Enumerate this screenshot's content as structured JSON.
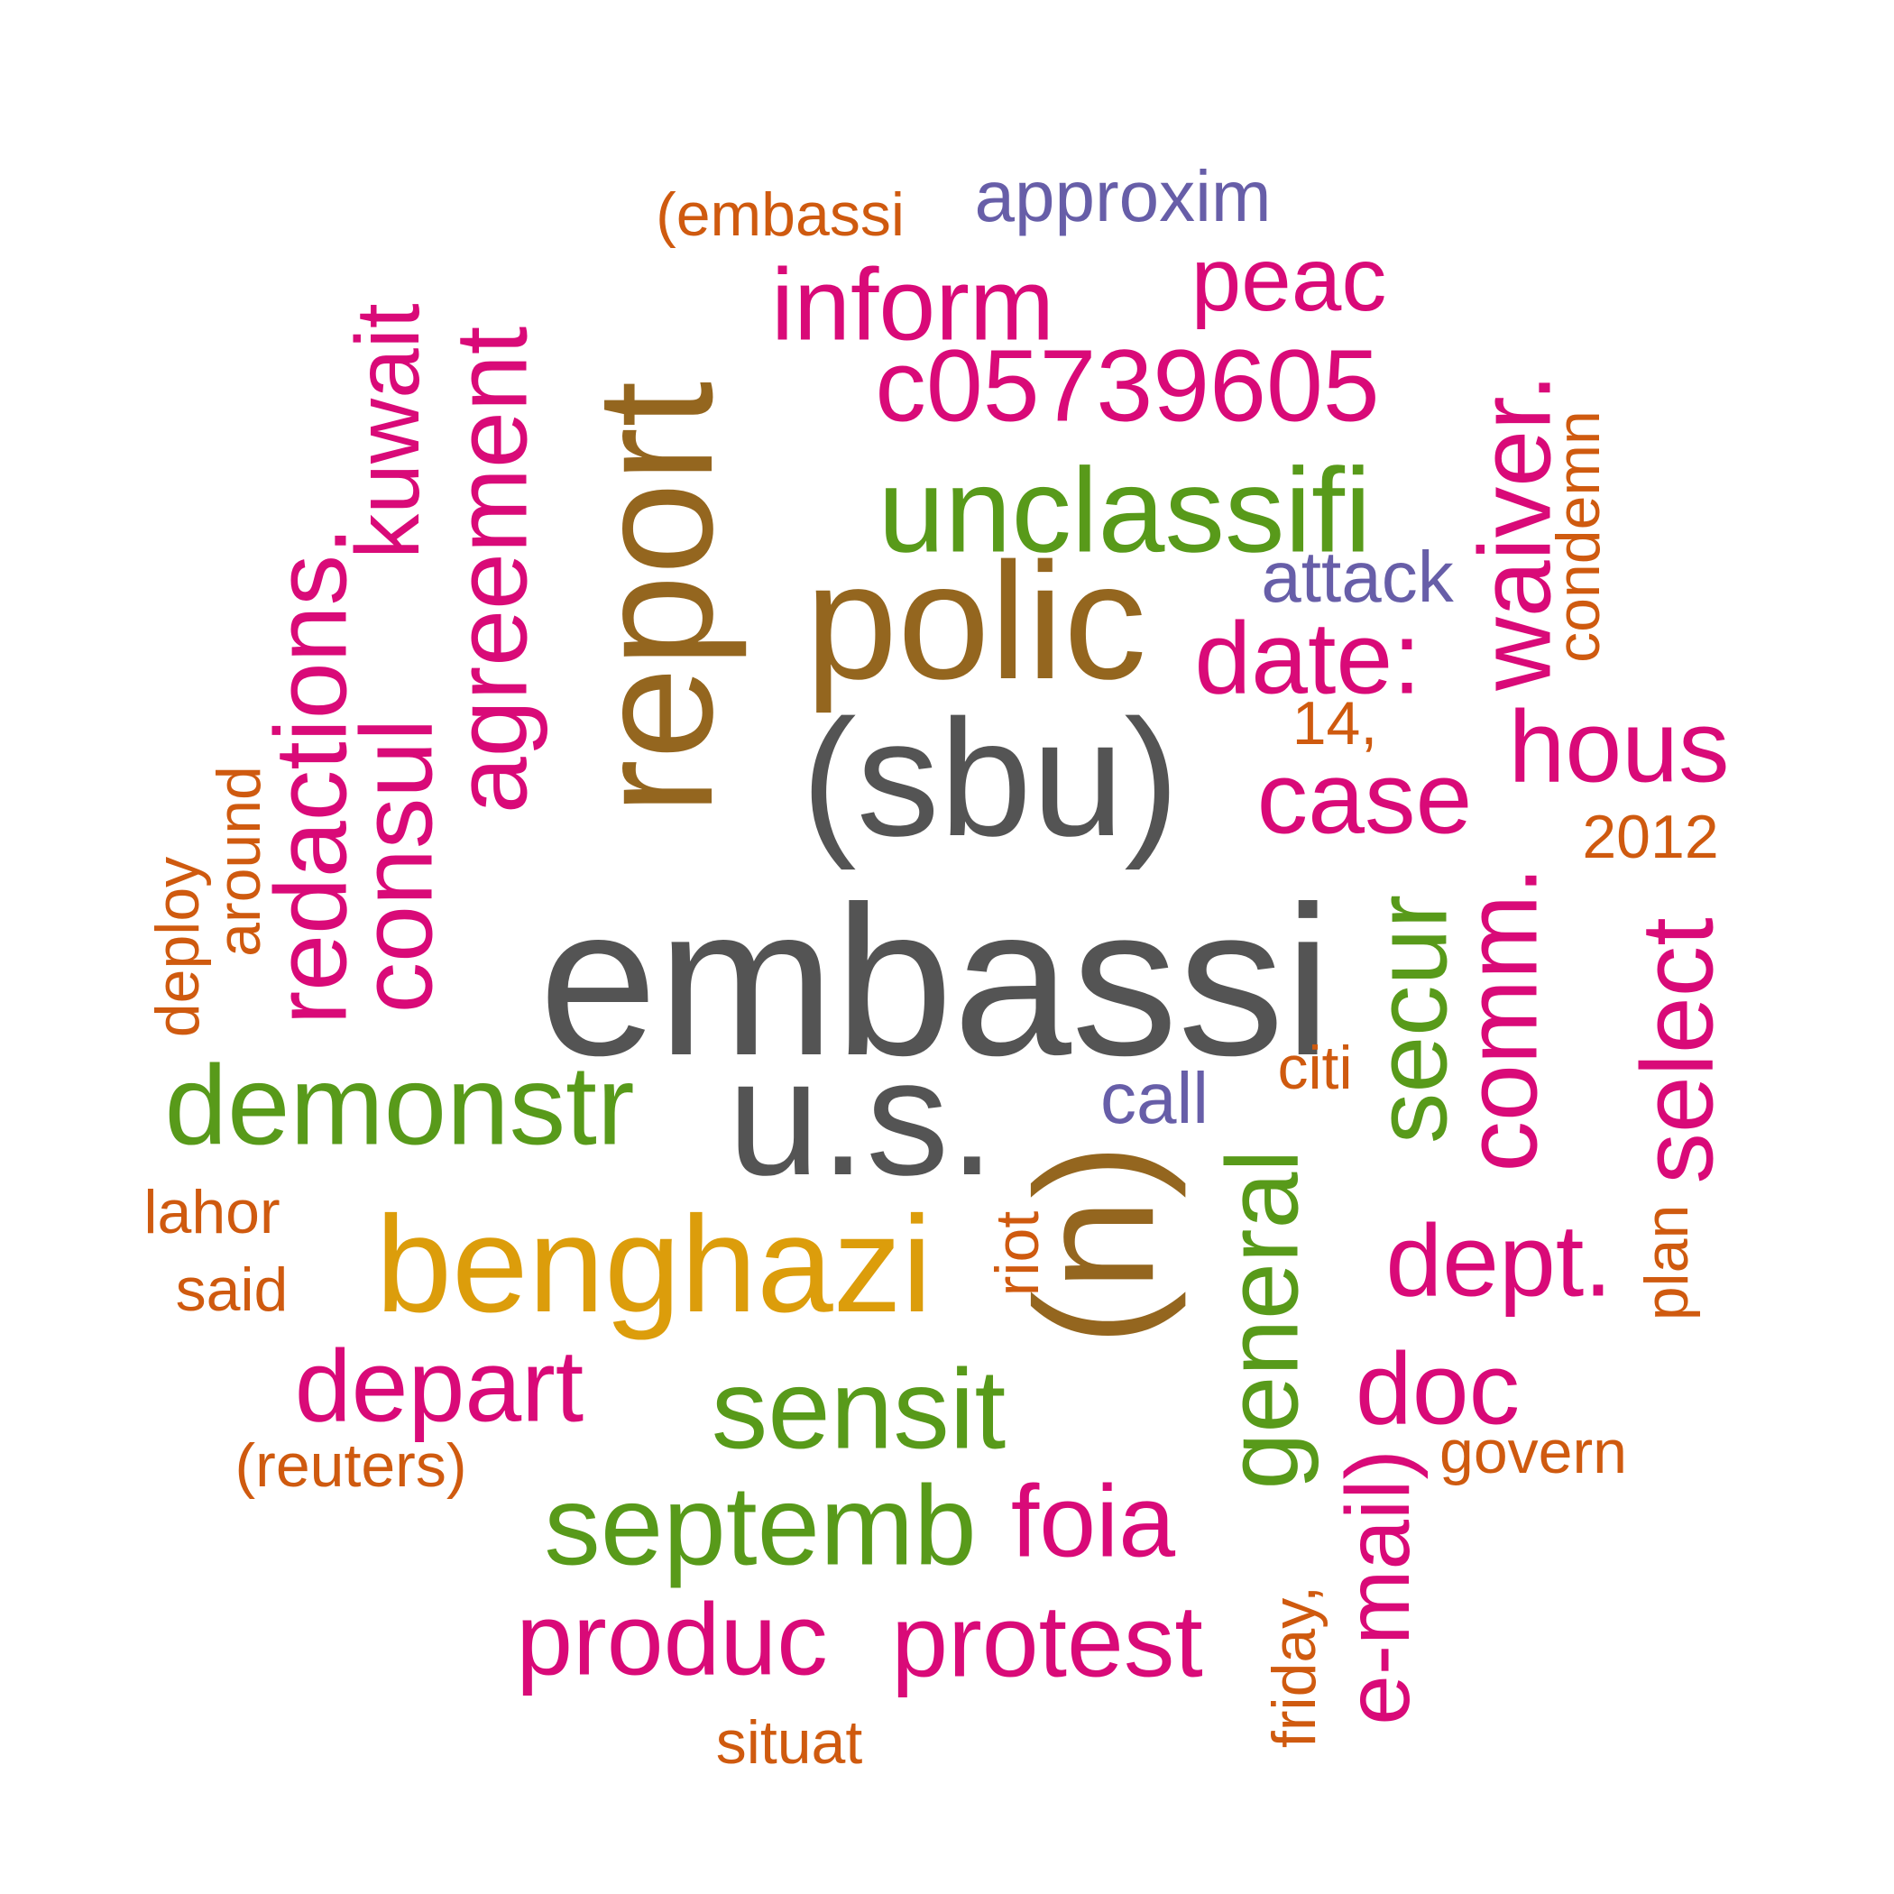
{
  "palette": {
    "gray": "#545454",
    "brown": "#94661f",
    "gold": "#dc9d0b",
    "green": "#589a1a",
    "magenta": "#d90a78",
    "orange": "#cf5a0f",
    "purple": "#675ea8"
  },
  "words": [
    {
      "text": "embassi",
      "color": "gray"
    },
    {
      "text": "(sbu)",
      "color": "gray"
    },
    {
      "text": "u.s.",
      "color": "gray"
    },
    {
      "text": "report",
      "color": "brown"
    },
    {
      "text": "polic",
      "color": "brown"
    },
    {
      "text": "(u)",
      "color": "brown"
    },
    {
      "text": "benghazi",
      "color": "gold"
    },
    {
      "text": "unclassifi",
      "color": "green"
    },
    {
      "text": "demonstr",
      "color": "green"
    },
    {
      "text": "sensit",
      "color": "green"
    },
    {
      "text": "septemb",
      "color": "green"
    },
    {
      "text": "general",
      "color": "green"
    },
    {
      "text": "secur",
      "color": "green"
    },
    {
      "text": "c05739605",
      "color": "magenta"
    },
    {
      "text": "inform",
      "color": "magenta"
    },
    {
      "text": "peac",
      "color": "magenta"
    },
    {
      "text": "date:",
      "color": "magenta"
    },
    {
      "text": "case",
      "color": "magenta"
    },
    {
      "text": "hous",
      "color": "magenta"
    },
    {
      "text": "dept.",
      "color": "magenta"
    },
    {
      "text": "doc",
      "color": "magenta"
    },
    {
      "text": "foia",
      "color": "magenta"
    },
    {
      "text": "depart",
      "color": "magenta"
    },
    {
      "text": "produc",
      "color": "magenta"
    },
    {
      "text": "protest",
      "color": "magenta"
    },
    {
      "text": "agreement",
      "color": "magenta"
    },
    {
      "text": "kuwait",
      "color": "magenta"
    },
    {
      "text": "redactions.",
      "color": "magenta"
    },
    {
      "text": "consul",
      "color": "magenta"
    },
    {
      "text": "waiver.",
      "color": "magenta"
    },
    {
      "text": "comm.",
      "color": "magenta"
    },
    {
      "text": "select",
      "color": "magenta"
    },
    {
      "text": "e-mail)",
      "color": "magenta"
    },
    {
      "text": "approxim",
      "color": "purple"
    },
    {
      "text": "attack",
      "color": "purple"
    },
    {
      "text": "call",
      "color": "purple"
    },
    {
      "text": "(embassi",
      "color": "orange"
    },
    {
      "text": "condemn",
      "color": "orange"
    },
    {
      "text": "14,",
      "color": "orange"
    },
    {
      "text": "2012",
      "color": "orange"
    },
    {
      "text": "around",
      "color": "orange"
    },
    {
      "text": "deploy",
      "color": "orange"
    },
    {
      "text": "citi",
      "color": "orange"
    },
    {
      "text": "lahor",
      "color": "orange"
    },
    {
      "text": "said",
      "color": "orange"
    },
    {
      "text": "riot",
      "color": "orange"
    },
    {
      "text": "plan",
      "color": "orange"
    },
    {
      "text": "(reuters)",
      "color": "orange"
    },
    {
      "text": "govern",
      "color": "orange"
    },
    {
      "text": "friday,",
      "color": "orange"
    },
    {
      "text": "situat",
      "color": "orange"
    }
  ]
}
